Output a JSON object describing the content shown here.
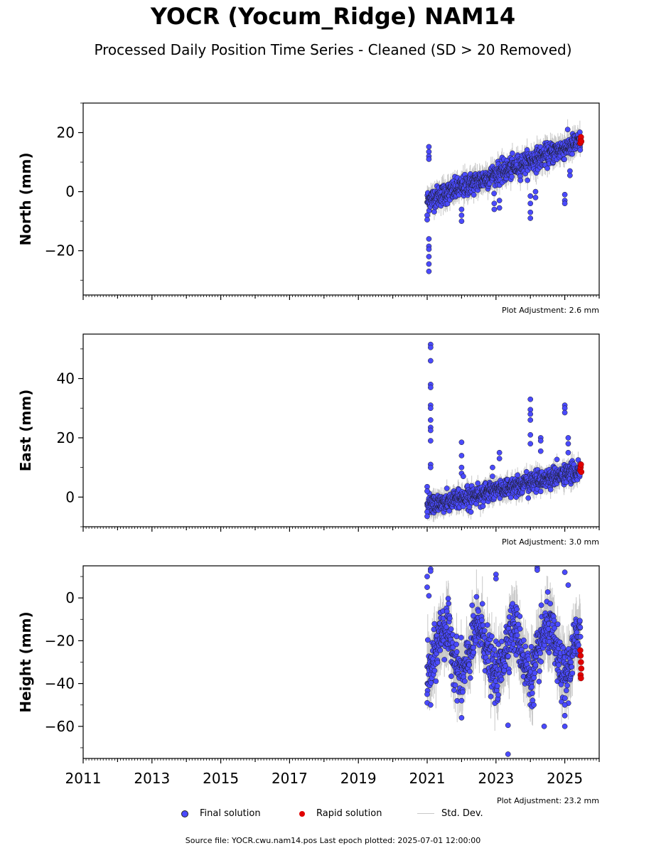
{
  "title": "YOCR (Yocum_Ridge) NAM14",
  "subtitle": "Processed Daily Position Time Series - Cleaned (SD > 20 Removed)",
  "legend": {
    "final": "Final solution",
    "rapid": "Rapid solution",
    "stddev": "Std. Dev."
  },
  "footer": "Source file: YOCR.cwu.nam14.pos  Last epoch plotted: 2025-07-01 12:00:00",
  "colors": {
    "final": "#4a4aff",
    "rapid": "#e00000",
    "stddev": "#c8c8c8"
  },
  "chart_data": [
    {
      "type": "scatter",
      "ylabel": "North (mm)",
      "adjustment": "Plot Adjustment: 2.6 mm",
      "xlim": [
        2011.0,
        2026.0
      ],
      "ylim": [
        -35,
        30
      ],
      "yticks": [
        -20,
        0,
        20
      ],
      "ytick_labels": [
        "−20",
        "0",
        "20"
      ],
      "data_span": [
        2021.0,
        2025.5
      ],
      "trend": {
        "start": -3,
        "end": 17,
        "noise": 1.8,
        "seasonal": 0
      },
      "outliers": [
        [
          2021.05,
          15.2
        ],
        [
          2021.05,
          13.5
        ],
        [
          2021.05,
          12.0
        ],
        [
          2021.05,
          11.0
        ],
        [
          2021.05,
          -16
        ],
        [
          2021.05,
          -18.5
        ],
        [
          2021.05,
          -19.5
        ],
        [
          2021.05,
          -22
        ],
        [
          2021.05,
          -24.5
        ],
        [
          2021.05,
          -27
        ],
        [
          2021.0,
          -8
        ],
        [
          2021.0,
          -9.5
        ],
        [
          2022.0,
          -6
        ],
        [
          2022.0,
          -8
        ],
        [
          2022.0,
          -10
        ],
        [
          2022.95,
          -4
        ],
        [
          2022.95,
          -6
        ],
        [
          2023.1,
          -3
        ],
        [
          2023.1,
          -5.5
        ],
        [
          2024.0,
          -1.5
        ],
        [
          2024.0,
          -4
        ],
        [
          2024.0,
          -7
        ],
        [
          2024.0,
          -9
        ],
        [
          2024.15,
          0
        ],
        [
          2024.15,
          -2
        ],
        [
          2025.0,
          -1
        ],
        [
          2025.0,
          -3
        ],
        [
          2025.0,
          -4
        ],
        [
          2025.15,
          7
        ],
        [
          2025.15,
          5.5
        ]
      ],
      "rapid": [
        [
          2025.45,
          16.5
        ],
        [
          2025.46,
          17.5
        ],
        [
          2025.47,
          18.5
        ],
        [
          2025.48,
          17
        ]
      ]
    },
    {
      "type": "scatter",
      "ylabel": "East (mm)",
      "adjustment": "Plot Adjustment: 3.0 mm",
      "xlim": [
        2011.0,
        2026.0
      ],
      "ylim": [
        -10,
        55
      ],
      "yticks": [
        0,
        20,
        40
      ],
      "ytick_labels": [
        "0",
        "20",
        "40"
      ],
      "data_span": [
        2021.0,
        2025.5
      ],
      "trend": {
        "start": -3,
        "end": 9,
        "noise": 1.6,
        "seasonal": 0
      },
      "outliers": [
        [
          2021.1,
          51.5
        ],
        [
          2021.1,
          50.5
        ],
        [
          2021.1,
          46
        ],
        [
          2021.1,
          38
        ],
        [
          2021.1,
          37
        ],
        [
          2021.1,
          31
        ],
        [
          2021.1,
          30
        ],
        [
          2021.1,
          26
        ],
        [
          2021.1,
          23.5
        ],
        [
          2021.1,
          22.5
        ],
        [
          2021.1,
          19
        ],
        [
          2021.1,
          11
        ],
        [
          2021.1,
          10
        ],
        [
          2021.0,
          3.5
        ],
        [
          2021.0,
          2
        ],
        [
          2021.0,
          -5
        ],
        [
          2021.0,
          -6.5
        ],
        [
          2022.0,
          18.5
        ],
        [
          2022.0,
          14
        ],
        [
          2022.0,
          10
        ],
        [
          2022.0,
          8
        ],
        [
          2022.05,
          7
        ],
        [
          2022.9,
          10
        ],
        [
          2022.9,
          7
        ],
        [
          2023.1,
          13
        ],
        [
          2023.1,
          15
        ],
        [
          2024.0,
          33
        ],
        [
          2024.0,
          29.5
        ],
        [
          2024.0,
          28
        ],
        [
          2024.0,
          26
        ],
        [
          2024.0,
          21
        ],
        [
          2024.0,
          18
        ],
        [
          2024.3,
          20
        ],
        [
          2024.3,
          19
        ],
        [
          2024.3,
          15.5
        ],
        [
          2025.0,
          31
        ],
        [
          2025.0,
          30
        ],
        [
          2025.0,
          28.5
        ],
        [
          2025.1,
          20
        ],
        [
          2025.1,
          18
        ],
        [
          2025.1,
          15
        ]
      ],
      "rapid": [
        [
          2025.45,
          9
        ],
        [
          2025.46,
          10
        ],
        [
          2025.47,
          11
        ],
        [
          2025.48,
          8.5
        ]
      ]
    },
    {
      "type": "scatter",
      "ylabel": "Height (mm)",
      "adjustment": "Plot Adjustment: 23.2 mm",
      "xlim": [
        2011.0,
        2026.0
      ],
      "ylim": [
        -75,
        15
      ],
      "yticks": [
        -60,
        -40,
        -20,
        0
      ],
      "ytick_labels": [
        "−60",
        "−40",
        "−20",
        "0"
      ],
      "xticks": [
        2011,
        2013,
        2015,
        2017,
        2019,
        2021,
        2023,
        2025
      ],
      "xtick_labels": [
        "2011",
        "2013",
        "2015",
        "2017",
        "2019",
        "2021",
        "2023",
        "2025"
      ],
      "data_span": [
        2021.0,
        2025.5
      ],
      "trend": {
        "start": -25,
        "end": -25,
        "noise": 6,
        "seasonal": 11
      },
      "outliers": [
        [
          2021.1,
          13.5
        ],
        [
          2021.1,
          12.5
        ],
        [
          2021.0,
          10
        ],
        [
          2021.0,
          5
        ],
        [
          2021.05,
          1
        ],
        [
          2021.0,
          -45
        ],
        [
          2021.0,
          -49
        ],
        [
          2021.1,
          -50
        ],
        [
          2022.0,
          -56
        ],
        [
          2022.0,
          -48
        ],
        [
          2023.0,
          11
        ],
        [
          2023.0,
          9
        ],
        [
          2023.35,
          -59.5
        ],
        [
          2023.35,
          -73
        ],
        [
          2024.2,
          14
        ],
        [
          2024.2,
          13
        ],
        [
          2024.4,
          -60
        ],
        [
          2024.1,
          -50
        ],
        [
          2025.0,
          12
        ],
        [
          2025.1,
          6
        ],
        [
          2025.0,
          -50
        ],
        [
          2025.0,
          -55
        ],
        [
          2025.0,
          -60
        ]
      ],
      "rapid": [
        [
          2025.45,
          -24.5
        ],
        [
          2025.46,
          -27
        ],
        [
          2025.47,
          -30
        ],
        [
          2025.48,
          -33
        ],
        [
          2025.46,
          -36
        ],
        [
          2025.47,
          -37.5
        ]
      ]
    }
  ]
}
